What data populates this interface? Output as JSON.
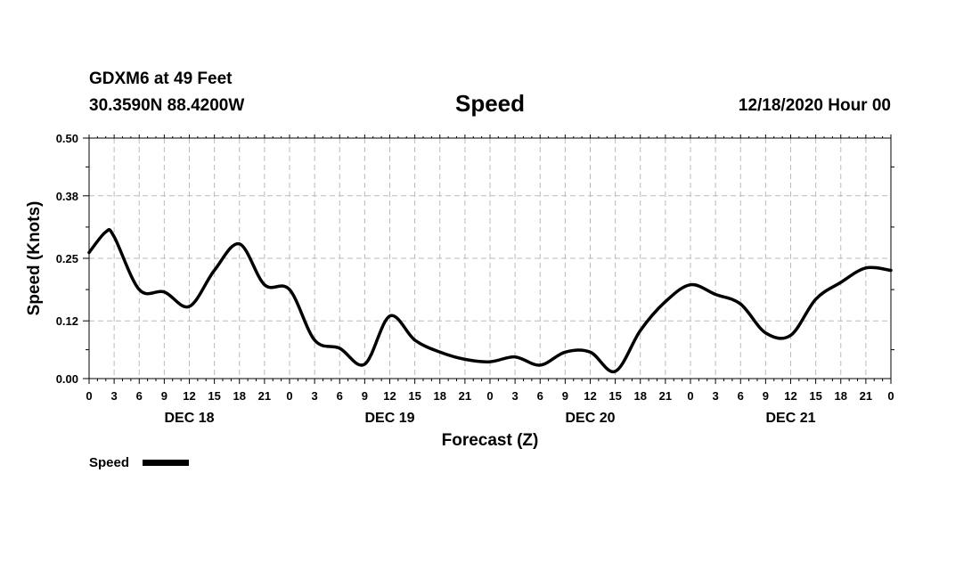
{
  "header": {
    "station": "GDXM6 at 49 Feet",
    "location": "30.3590N 88.4200W",
    "run": "12/18/2020 Hour 00"
  },
  "legend": {
    "label": "Speed"
  },
  "chart_data": {
    "type": "line",
    "title": "Speed",
    "xlabel": "Forecast (Z)",
    "ylabel": "Speed (Knots)",
    "x_unit": "forecast hours from 12/18/2020 00Z",
    "xlim": [
      0,
      96
    ],
    "ylim": [
      0,
      0.5
    ],
    "y_ticks": [
      0.0,
      0.12,
      0.25,
      0.38,
      0.5
    ],
    "y_tick_labels": [
      "0.00",
      "0.12",
      "0.25",
      "0.38",
      "0.50"
    ],
    "x_tick_hours": [
      0,
      3,
      6,
      9,
      12,
      15,
      18,
      21,
      24,
      27,
      30,
      33,
      36,
      39,
      42,
      45,
      48,
      51,
      54,
      57,
      60,
      63,
      66,
      69,
      72,
      75,
      78,
      81,
      84,
      87,
      90,
      93,
      96
    ],
    "x_tick_labels": [
      "0",
      "3",
      "6",
      "9",
      "12",
      "15",
      "18",
      "21",
      "0",
      "3",
      "6",
      "9",
      "12",
      "15",
      "18",
      "21",
      "0",
      "3",
      "6",
      "9",
      "12",
      "15",
      "18",
      "21",
      "0",
      "3",
      "6",
      "9",
      "12",
      "15",
      "18",
      "21",
      "0"
    ],
    "day_labels": [
      {
        "label": "DEC 18",
        "hour": 12
      },
      {
        "label": "DEC 19",
        "hour": 36
      },
      {
        "label": "DEC 20",
        "hour": 60
      },
      {
        "label": "DEC 21",
        "hour": 84
      }
    ],
    "grid": true,
    "series": [
      {
        "name": "Speed",
        "x": [
          0,
          2,
          3,
          6,
          9,
          12,
          15,
          18,
          21,
          24,
          27,
          30,
          33,
          36,
          39,
          42,
          45,
          48,
          51,
          54,
          57,
          60,
          63,
          66,
          69,
          72,
          75,
          78,
          81,
          84,
          87,
          90,
          93,
          96
        ],
        "values": [
          0.262,
          0.305,
          0.295,
          0.185,
          0.18,
          0.15,
          0.225,
          0.28,
          0.195,
          0.185,
          0.08,
          0.063,
          0.03,
          0.13,
          0.08,
          0.055,
          0.04,
          0.035,
          0.045,
          0.028,
          0.055,
          0.055,
          0.015,
          0.1,
          0.16,
          0.195,
          0.175,
          0.155,
          0.095,
          0.09,
          0.165,
          0.2,
          0.23,
          0.225
        ]
      }
    ]
  }
}
